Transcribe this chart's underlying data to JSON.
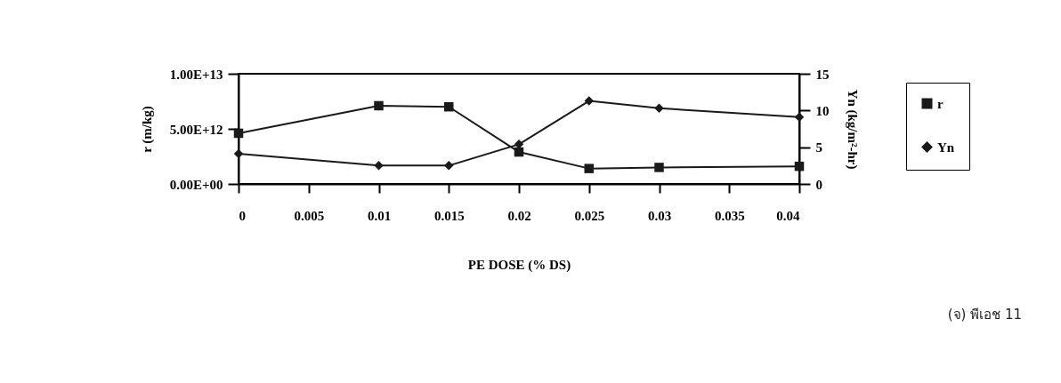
{
  "chart_data": {
    "type": "line",
    "xlabel": "PE DOSE (% DS)",
    "ylabel": "r (m/kg)",
    "y2label": "Yn (kg/m²-hr)",
    "x": [
      0,
      0.01,
      0.015,
      0.02,
      0.025,
      0.03,
      0.04
    ],
    "xlim": [
      0,
      0.04
    ],
    "xticks": [
      0,
      0.005,
      0.01,
      0.015,
      0.02,
      0.025,
      0.03,
      0.035,
      0.04
    ],
    "ylim": [
      0,
      10000000000000.0
    ],
    "yticks": [
      {
        "value": 0,
        "label": "0.00E+00"
      },
      {
        "value": 5000000000000.0,
        "label": "5.00E+12"
      },
      {
        "value": 10000000000000.0,
        "label": "1.00E+13"
      }
    ],
    "y2lim": [
      0,
      15
    ],
    "y2ticks": [
      0,
      5,
      10,
      15
    ],
    "series": [
      {
        "name": "r",
        "color": "#1a1a1a",
        "marker": "square",
        "values": [
          4600000000000.0,
          7100000000000.0,
          7000000000000.0,
          2900000000000.0,
          1400000000000.0,
          1500000000000.0,
          1600000000000.0
        ]
      },
      {
        "name": "Yn",
        "color": "#1a1a1a",
        "marker": "diamond",
        "axis": "y2",
        "values": [
          4.1,
          2.5,
          2.5,
          5.4,
          11.3,
          10.3,
          9.1
        ]
      }
    ],
    "legend": "right",
    "grid": false,
    "line_style": "solid",
    "annotations": [
      "(จ) พีเอช 11"
    ]
  }
}
